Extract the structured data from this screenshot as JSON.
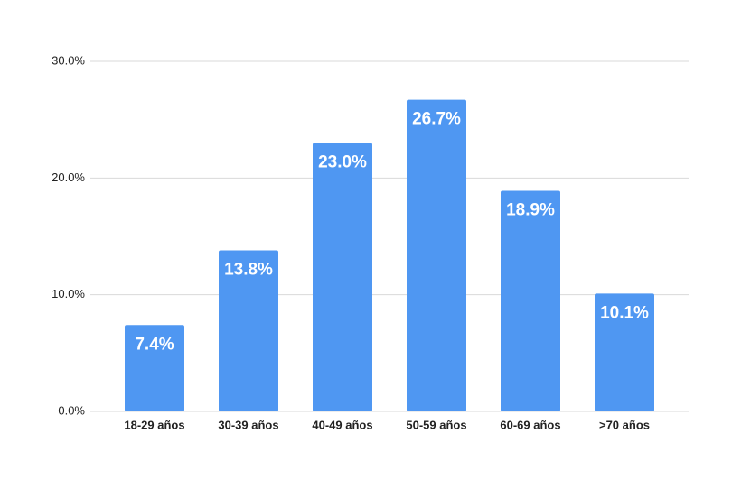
{
  "chart_data": {
    "type": "bar",
    "categories": [
      "18-29 años",
      "30-39 años",
      "40-49 años",
      "50-59 años",
      "60-69 años",
      ">70 años"
    ],
    "values": [
      7.4,
      13.8,
      23.0,
      26.7,
      18.9,
      10.1
    ],
    "value_labels": [
      "7.4%",
      "13.8%",
      "23.0%",
      "26.7%",
      "18.9%",
      "10.1%"
    ],
    "color": "#4f97f2",
    "ylim": [
      0,
      30
    ],
    "yticks": [
      {
        "value": 0,
        "label": "0.0%"
      },
      {
        "value": 10,
        "label": "10.0%"
      },
      {
        "value": 20,
        "label": "20.0%"
      },
      {
        "value": 30,
        "label": "30.0%"
      }
    ],
    "grid": true
  }
}
